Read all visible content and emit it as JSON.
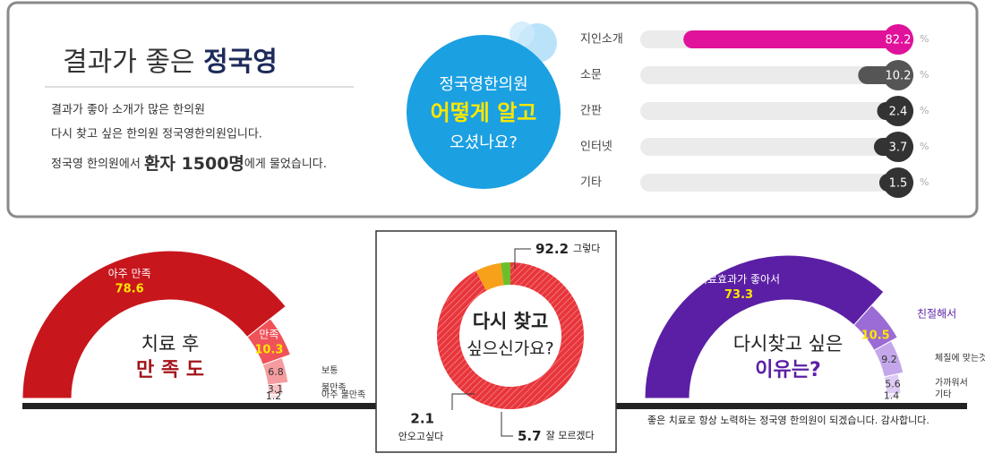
{
  "header": {
    "title_normal": "결과가 좋은",
    "title_bold": "정국영",
    "lines": [
      "결과가 좋아 소개가 많은 한의원",
      "다시 찾고 싶은 한의원 정국영한의원입니다."
    ],
    "survey_prefix": "정국영 한의원에서",
    "survey_bold": "환자 1500명",
    "survey_suffix": "에게 물었습니다."
  },
  "footer": "좋은 치료로 항상 노력하는 정국영 한의원이 되겠습니다. 감사합니다.",
  "chart_data": [
    {
      "type": "bar",
      "title_lines": [
        "정국영한의원",
        "어떻게 알고",
        "오셨나요?"
      ],
      "categories": [
        "지인소개",
        "소문",
        "간판",
        "인터넷",
        "기타"
      ],
      "values": [
        82.2,
        10.2,
        2.4,
        3.7,
        1.5
      ],
      "unit": "%",
      "xlim": [
        0,
        100
      ],
      "colors": [
        "#e0119a",
        "#555555",
        "#333333",
        "#333333",
        "#333333"
      ]
    },
    {
      "type": "semi-donut",
      "title_lines": [
        "치료 후",
        "만 족 도"
      ],
      "categories": [
        "아주 만족",
        "만족",
        "보통",
        "불만족",
        "아주 불만족"
      ],
      "values": [
        78.6,
        10.3,
        6.8,
        3.1,
        1.2
      ],
      "colors": [
        "#c8161d",
        "#f0525a",
        "#f59ca0",
        "#f8c1c3",
        "#fbdfe0"
      ]
    },
    {
      "type": "donut",
      "title_lines": [
        "다시 찾고",
        "싶으신가요?"
      ],
      "categories": [
        "그렇다",
        "잘 모르겠다",
        "안오고싶다"
      ],
      "values": [
        92.2,
        5.7,
        2.1
      ],
      "colors": [
        "#e8353b",
        "#f7a11a",
        "#6cbf2a"
      ]
    },
    {
      "type": "semi-donut",
      "title_lines": [
        "다시찾고 싶은",
        "이유는?"
      ],
      "categories": [
        "치료효과가 좋아서",
        "친절해서",
        "체질에 맞는것 같아서",
        "가까워서",
        "기타"
      ],
      "values": [
        73.3,
        10.5,
        9.2,
        5.6,
        1.4
      ],
      "colors": [
        "#5b1fa5",
        "#9b6bd6",
        "#c3a7ea",
        "#dccbf3",
        "#ece3f8"
      ]
    }
  ]
}
